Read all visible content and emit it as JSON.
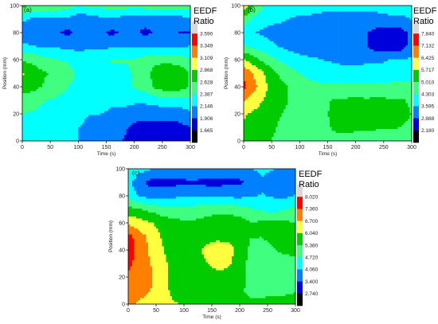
{
  "chart_data": [
    {
      "type": "heatmap",
      "panel_label": "(a)",
      "xlabel": "Time (s)",
      "ylabel": "Position (mm)",
      "xlim": [
        0,
        300
      ],
      "ylim": [
        0,
        100
      ],
      "x_ticks": [
        0,
        50,
        100,
        150,
        200,
        250,
        300
      ],
      "y_ticks": [
        0,
        20,
        40,
        60,
        80,
        100
      ],
      "colorbar": {
        "title_lines": [
          "EEDF",
          "Ratio"
        ],
        "ticks": [
          "3.590",
          "3.349",
          "3.109",
          "2.868",
          "2.628",
          "2.387",
          "2.146",
          "1.906",
          "1.665"
        ],
        "bands_top_to_bottom": [
          "#d8d8d8",
          "#ff0000",
          "#ff8000",
          "#ffff40",
          "#00cc00",
          "#40ff80",
          "#00ffff",
          "#0080ff",
          "#0000dd",
          "#000000"
        ]
      },
      "x": [
        0,
        20,
        40,
        60,
        80,
        100,
        120,
        140,
        160,
        180,
        200,
        220,
        240,
        260,
        280,
        300
      ],
      "y": [
        0,
        10,
        20,
        30,
        40,
        50,
        60,
        70,
        80,
        90,
        100
      ],
      "z": [
        [
          2.3,
          2.25,
          2.2,
          2.2,
          2.2,
          2.15,
          2.1,
          2.0,
          1.95,
          1.9,
          1.8,
          1.75,
          1.75,
          1.75,
          1.8,
          1.85
        ],
        [
          2.3,
          2.3,
          2.25,
          2.2,
          2.2,
          2.15,
          2.1,
          2.05,
          2.0,
          1.95,
          1.85,
          1.8,
          1.8,
          1.8,
          1.85,
          1.9
        ],
        [
          2.4,
          2.35,
          2.3,
          2.25,
          2.2,
          2.2,
          2.15,
          2.15,
          2.1,
          2.1,
          2.0,
          2.0,
          2.0,
          2.0,
          2.0,
          2.1
        ],
        [
          2.5,
          2.5,
          2.4,
          2.35,
          2.3,
          2.25,
          2.2,
          2.25,
          2.2,
          2.2,
          2.2,
          2.2,
          2.25,
          2.3,
          2.3,
          2.3
        ],
        [
          2.75,
          2.7,
          2.6,
          2.5,
          2.4,
          2.3,
          2.3,
          2.3,
          2.35,
          2.35,
          2.4,
          2.5,
          2.7,
          2.8,
          2.75,
          2.6
        ],
        [
          2.9,
          2.75,
          2.65,
          2.6,
          2.5,
          2.35,
          2.3,
          2.3,
          2.35,
          2.35,
          2.4,
          2.55,
          2.75,
          2.85,
          2.8,
          2.6
        ],
        [
          2.6,
          2.55,
          2.45,
          2.4,
          2.35,
          2.2,
          2.3,
          2.35,
          2.4,
          2.4,
          2.4,
          2.5,
          2.55,
          2.55,
          2.5,
          2.45
        ],
        [
          2.2,
          2.15,
          2.1,
          2.1,
          2.1,
          2.1,
          2.1,
          2.1,
          2.1,
          2.1,
          2.1,
          2.1,
          2.1,
          2.1,
          2.1,
          2.15
        ],
        [
          1.95,
          1.95,
          1.95,
          1.95,
          1.85,
          1.95,
          1.95,
          1.95,
          1.85,
          1.95,
          1.95,
          1.85,
          1.95,
          1.95,
          1.9,
          1.9
        ],
        [
          2.2,
          2.1,
          2.05,
          2.1,
          2.1,
          2.0,
          2.0,
          2.1,
          2.1,
          2.05,
          2.0,
          2.0,
          2.05,
          2.05,
          2.05,
          2.1
        ],
        [
          2.7,
          2.6,
          2.6,
          2.6,
          2.5,
          2.4,
          2.45,
          2.45,
          2.5,
          2.5,
          2.45,
          2.5,
          2.5,
          2.5,
          2.5,
          2.55
        ]
      ]
    },
    {
      "type": "heatmap",
      "panel_label": "(b)",
      "xlabel": "Time (s)",
      "ylabel": "Position (mm)",
      "xlim": [
        0,
        300
      ],
      "ylim": [
        0,
        100
      ],
      "x_ticks": [
        0,
        50,
        100,
        150,
        200,
        250,
        300
      ],
      "y_ticks": [
        0,
        20,
        40,
        60,
        80,
        100
      ],
      "colorbar": {
        "title_lines": [
          "EEDF",
          "Ratio"
        ],
        "ticks": [
          "7.840",
          "7.132",
          "6.425",
          "5.717",
          "5.010",
          "4.303",
          "3.595",
          "2.888",
          "2.180"
        ],
        "bands_top_to_bottom": [
          "#d8d8d8",
          "#ff0000",
          "#ff8000",
          "#ffff40",
          "#00cc00",
          "#40ff80",
          "#00ffff",
          "#0080ff",
          "#0000dd",
          "#000000"
        ]
      },
      "x": [
        0,
        20,
        40,
        60,
        80,
        100,
        120,
        140,
        160,
        180,
        200,
        220,
        240,
        260,
        280,
        300
      ],
      "y": [
        0,
        10,
        20,
        30,
        40,
        50,
        60,
        70,
        80,
        90,
        100
      ],
      "z": [
        [
          5.5,
          5.3,
          5.1,
          4.9,
          4.5,
          4.4,
          4.4,
          4.5,
          4.8,
          4.8,
          4.8,
          4.8,
          4.6,
          4.6,
          4.7,
          4.7
        ],
        [
          5.6,
          5.4,
          5.2,
          5.0,
          4.7,
          4.5,
          4.5,
          4.7,
          5.1,
          5.2,
          5.1,
          5.1,
          5.1,
          5.1,
          5.0,
          4.9
        ],
        [
          5.8,
          5.6,
          5.4,
          5.1,
          4.9,
          4.6,
          4.6,
          4.8,
          5.2,
          5.3,
          5.2,
          5.2,
          5.2,
          5.2,
          5.2,
          5.0
        ],
        [
          6.5,
          6.0,
          5.6,
          5.3,
          5.0,
          4.8,
          4.6,
          4.7,
          5.1,
          5.1,
          5.2,
          5.1,
          5.2,
          5.1,
          5.1,
          4.9
        ],
        [
          7.3,
          6.6,
          5.8,
          5.3,
          5.0,
          4.7,
          4.5,
          4.4,
          4.4,
          4.4,
          4.4,
          4.4,
          4.4,
          4.4,
          4.4,
          4.4
        ],
        [
          7.0,
          6.3,
          5.6,
          5.0,
          4.6,
          4.3,
          4.1,
          4.0,
          3.9,
          3.9,
          3.9,
          4.0,
          4.0,
          4.1,
          4.2,
          4.2
        ],
        [
          5.8,
          5.2,
          4.7,
          4.3,
          4.0,
          3.8,
          3.7,
          3.6,
          3.5,
          3.4,
          3.4,
          3.4,
          3.4,
          3.6,
          3.6,
          3.7
        ],
        [
          4.4,
          4.1,
          3.9,
          3.6,
          3.4,
          3.3,
          3.2,
          3.1,
          3.0,
          3.0,
          3.0,
          2.9,
          2.5,
          2.4,
          2.5,
          3.2
        ],
        [
          3.8,
          3.6,
          3.4,
          3.2,
          3.1,
          3.0,
          3.0,
          2.95,
          2.95,
          2.95,
          3.0,
          2.9,
          2.6,
          2.5,
          2.6,
          3.1
        ],
        [
          4.8,
          4.1,
          3.9,
          3.8,
          3.6,
          3.5,
          3.5,
          3.4,
          3.4,
          3.4,
          3.4,
          3.4,
          3.4,
          3.5,
          3.5,
          3.6
        ],
        [
          6.2,
          4.8,
          4.2,
          4.0,
          3.9,
          3.8,
          3.8,
          3.8,
          3.8,
          3.8,
          3.8,
          3.8,
          3.8,
          3.8,
          3.8,
          3.9
        ]
      ]
    },
    {
      "type": "heatmap",
      "panel_label": "(c)",
      "xlabel": "Time (s)",
      "ylabel": "Position (mm)",
      "xlim": [
        0,
        300
      ],
      "ylim": [
        0,
        100
      ],
      "x_ticks": [
        0,
        50,
        100,
        150,
        200,
        250,
        300
      ],
      "y_ticks": [
        0,
        20,
        40,
        60,
        80,
        100
      ],
      "colorbar": {
        "title_lines": [
          "EEDF",
          "Ratio"
        ],
        "ticks": [
          "8.020",
          "7.360",
          "6.700",
          "6.040",
          "5.380",
          "4.720",
          "4.060",
          "3.400",
          "2.740"
        ],
        "bands_top_to_bottom": [
          "#d8d8d8",
          "#ff0000",
          "#ff8000",
          "#ffff40",
          "#00cc00",
          "#40ff80",
          "#00ffff",
          "#0080ff",
          "#0000dd",
          "#000000"
        ]
      },
      "x": [
        0,
        20,
        40,
        60,
        80,
        100,
        120,
        140,
        160,
        180,
        200,
        220,
        240,
        260,
        280,
        300
      ],
      "y": [
        0,
        10,
        20,
        30,
        40,
        50,
        60,
        70,
        80,
        90,
        100
      ],
      "z": [
        [
          6.9,
          6.6,
          6.5,
          6.3,
          6.1,
          6.0,
          5.9,
          5.9,
          5.9,
          5.8,
          5.6,
          5.5,
          5.6,
          5.8,
          5.9,
          5.9
        ],
        [
          7.2,
          6.9,
          6.7,
          6.3,
          5.9,
          5.8,
          5.7,
          5.8,
          5.8,
          5.7,
          5.5,
          5.2,
          5.1,
          5.1,
          5.1,
          5.3
        ],
        [
          7.3,
          7.1,
          6.8,
          6.3,
          5.9,
          5.8,
          5.8,
          5.8,
          5.9,
          5.9,
          5.7,
          5.1,
          4.9,
          4.8,
          4.9,
          5.1
        ],
        [
          7.5,
          7.1,
          6.7,
          6.2,
          5.9,
          5.8,
          5.8,
          6.0,
          6.2,
          6.1,
          5.8,
          5.1,
          4.9,
          4.9,
          5.0,
          5.1
        ],
        [
          7.8,
          7.1,
          6.6,
          6.1,
          5.8,
          5.7,
          5.8,
          6.2,
          6.3,
          6.2,
          5.9,
          5.2,
          5.1,
          5.3,
          5.6,
          5.6
        ],
        [
          7.6,
          7.0,
          6.5,
          6.0,
          5.8,
          5.6,
          5.6,
          5.8,
          5.9,
          5.9,
          5.8,
          5.4,
          5.4,
          5.6,
          5.8,
          5.6
        ],
        [
          6.6,
          6.3,
          6.1,
          5.8,
          5.6,
          5.5,
          5.5,
          5.6,
          5.7,
          5.7,
          5.7,
          5.4,
          5.5,
          5.5,
          5.5,
          5.4
        ],
        [
          5.6,
          5.4,
          5.2,
          5.0,
          4.9,
          4.9,
          5.0,
          5.1,
          5.2,
          5.2,
          5.0,
          4.8,
          4.6,
          4.5,
          4.7,
          4.9
        ],
        [
          4.6,
          4.0,
          3.8,
          3.8,
          3.9,
          4.0,
          4.0,
          4.0,
          3.9,
          3.9,
          3.9,
          4.0,
          4.1,
          4.0,
          3.9,
          4.1
        ],
        [
          4.2,
          3.6,
          3.2,
          3.2,
          3.2,
          3.3,
          3.3,
          3.2,
          3.2,
          3.3,
          3.3,
          3.5,
          3.9,
          3.6,
          3.4,
          3.6
        ],
        [
          4.9,
          4.3,
          4.1,
          4.0,
          3.9,
          3.8,
          3.9,
          3.9,
          3.9,
          3.8,
          3.8,
          4.0,
          4.3,
          4.1,
          3.9,
          4.1
        ]
      ]
    }
  ]
}
